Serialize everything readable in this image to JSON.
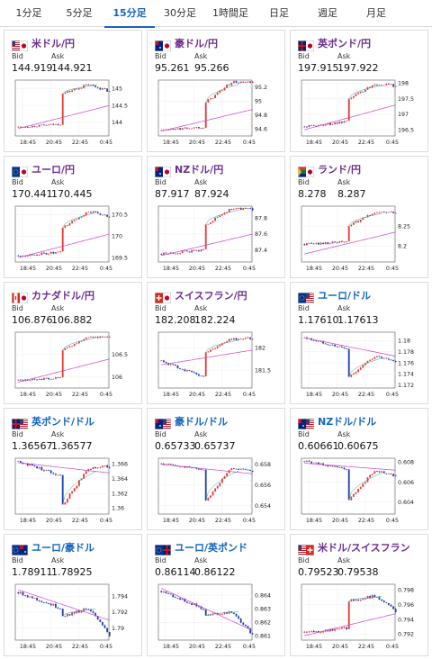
{
  "tabs": [
    {
      "label": "1分足",
      "active": false
    },
    {
      "label": "5分足",
      "active": false
    },
    {
      "label": "15分足",
      "active": true
    },
    {
      "label": "30分足",
      "active": false
    },
    {
      "label": "1時間足",
      "active": false
    },
    {
      "label": "日足",
      "active": false
    },
    {
      "label": "週足",
      "active": false
    },
    {
      "label": "月足",
      "active": false
    }
  ],
  "labels": {
    "bid": "Bid",
    "ask": "Ask"
  },
  "colors": {
    "candle_up": "#e53935",
    "candle_down": "#1e40af",
    "moving_average": "#cc44cc",
    "trend_line": "#26a69a",
    "pair_rising": "#6b2d8f",
    "pair_falling": "#1565c0",
    "active_tab": "#1565c0"
  },
  "quotes": [
    {
      "pair": "米ドル/円",
      "flag": "us-jp-flag-icon",
      "bid": "144.919",
      "ask": "144.921",
      "chart_data": {
        "type": "candlestick",
        "x_ticks": [
          "18:45",
          "20:45",
          "22:45",
          "0:45"
        ],
        "y_ticks": [
          "145",
          "144.5",
          "144"
        ],
        "ylim": [
          143.6,
          145.25
        ],
        "before": {
          "start": 143.86,
          "end": 143.95,
          "amp": 0.03
        },
        "jump": [
          143.95,
          144.85
        ],
        "after": {
          "start": 144.85,
          "peak": 145.12,
          "end": 144.92,
          "amp": 0.04
        },
        "ma": {
          "start": 143.82,
          "end": 144.5
        }
      }
    },
    {
      "pair": "豪ドル/円",
      "flag": "au-jp-flag-icon",
      "bid": "95.261",
      "ask": "95.266",
      "chart_data": {
        "type": "candlestick",
        "x_ticks": [
          "18:45",
          "20:45",
          "22:45",
          "0:45"
        ],
        "y_ticks": [
          "95.2",
          "95",
          "94.8",
          "94.6"
        ],
        "ylim": [
          94.5,
          95.3
        ],
        "before": {
          "start": 94.58,
          "end": 94.63,
          "amp": 0.015
        },
        "jump": [
          94.63,
          94.98
        ],
        "after": {
          "start": 94.98,
          "peak": 95.27,
          "end": 95.26,
          "amp": 0.02
        },
        "ma": {
          "start": 94.57,
          "end": 94.88
        }
      }
    },
    {
      "pair": "英ポンド/円",
      "flag": "gb-jp-flag-icon",
      "bid": "197.915",
      "ask": "197.922",
      "chart_data": {
        "type": "candlestick",
        "x_ticks": [
          "18:45",
          "20:45",
          "22:45",
          "0:45"
        ],
        "y_ticks": [
          "198",
          "197.5",
          "197",
          "196.5"
        ],
        "ylim": [
          196.3,
          198.1
        ],
        "before": {
          "start": 196.6,
          "end": 196.75,
          "amp": 0.04
        },
        "jump": [
          196.75,
          197.5
        ],
        "after": {
          "start": 197.5,
          "peak": 197.98,
          "end": 197.92,
          "amp": 0.04
        },
        "ma": {
          "start": 196.5,
          "end": 197.3
        }
      }
    },
    {
      "pair": "ユーロ/円",
      "flag": "eu-jp-flag-icon",
      "bid": "170.441",
      "ask": "170.445",
      "chart_data": {
        "type": "candlestick",
        "x_ticks": [
          "18:45",
          "20:45",
          "22:45",
          "0:45"
        ],
        "y_ticks": [
          "170.5",
          "170",
          "169.5"
        ],
        "ylim": [
          169.4,
          170.7
        ],
        "before": {
          "start": 169.55,
          "end": 169.62,
          "amp": 0.03
        },
        "jump": [
          169.62,
          170.2
        ],
        "after": {
          "start": 170.2,
          "peak": 170.58,
          "end": 170.44,
          "amp": 0.03
        },
        "ma": {
          "start": 169.5,
          "end": 170.05
        }
      }
    },
    {
      "pair": "NZドル/円",
      "flag": "nz-jp-flag-icon",
      "bid": "87.917",
      "ask": "87.924",
      "chart_data": {
        "type": "candlestick",
        "x_ticks": [
          "18:45",
          "20:45",
          "22:45",
          "0:45"
        ],
        "y_ticks": [
          "87.8",
          "87.6",
          "87.4"
        ],
        "ylim": [
          87.25,
          87.95
        ],
        "before": {
          "start": 87.35,
          "end": 87.4,
          "amp": 0.015
        },
        "jump": [
          87.4,
          87.72
        ],
        "after": {
          "start": 87.72,
          "peak": 87.92,
          "end": 87.91,
          "amp": 0.015
        },
        "ma": {
          "start": 87.33,
          "end": 87.6
        }
      }
    },
    {
      "pair": "ランド/円",
      "flag": "za-jp-flag-icon",
      "bid": "8.278",
      "ask": "8.287",
      "chart_data": {
        "type": "candlestick",
        "x_ticks": [
          "18:45",
          "20:45",
          "22:45",
          "0:45"
        ],
        "y_ticks": [
          "8.25",
          "8.2"
        ],
        "ylim": [
          8.16,
          8.3
        ],
        "before": {
          "start": 8.205,
          "end": 8.21,
          "amp": 0.003
        },
        "jump": [
          8.21,
          8.25
        ],
        "after": {
          "start": 8.25,
          "peak": 8.285,
          "end": 8.283,
          "amp": 0.003
        },
        "ma": {
          "start": 8.18,
          "end": 8.235
        }
      }
    },
    {
      "pair": "カナダドル/円",
      "flag": "ca-jp-flag-icon",
      "bid": "106.876",
      "ask": "106.882",
      "chart_data": {
        "type": "candlestick",
        "x_ticks": [
          "18:45",
          "20:45",
          "22:45",
          "0:45"
        ],
        "y_ticks": [
          "106.5",
          "106"
        ],
        "ylim": [
          105.75,
          107.0
        ],
        "before": {
          "start": 105.92,
          "end": 105.98,
          "amp": 0.02
        },
        "jump": [
          105.98,
          106.6
        ],
        "after": {
          "start": 106.6,
          "peak": 106.9,
          "end": 106.88,
          "amp": 0.02
        },
        "ma": {
          "start": 105.88,
          "end": 106.4
        }
      }
    },
    {
      "pair": "スイスフラン/円",
      "flag": "ch-jp-flag-icon",
      "bid": "182.208",
      "ask": "182.224",
      "chart_data": {
        "type": "candlestick",
        "x_ticks": [
          "18:45",
          "20:45",
          "22:45",
          "0:45"
        ],
        "y_ticks": [
          "182",
          "181.5"
        ],
        "ylim": [
          181.1,
          182.35
        ],
        "before": {
          "start": 181.7,
          "end": 181.35,
          "amp": 0.03
        },
        "jump": [
          181.35,
          181.9
        ],
        "after": {
          "start": 181.9,
          "peak": 182.2,
          "end": 182.21,
          "amp": 0.03
        },
        "ma": {
          "start": 181.62,
          "end": 181.95
        }
      }
    },
    {
      "pair": "ユーロ/ドル",
      "flag": "eu-us-flag-icon",
      "bid": "1.17610",
      "ask": "1.17613",
      "chart_data": {
        "type": "candlestick",
        "x_ticks": [
          "18:45",
          "20:45",
          "22:45",
          "0:45"
        ],
        "y_ticks": [
          "1.18",
          "1.178",
          "1.176",
          "1.174",
          "1.172"
        ],
        "ylim": [
          1.1715,
          1.1815
        ],
        "before": {
          "start": 1.1805,
          "end": 1.1785,
          "amp": 0.0002
        },
        "jump": [
          1.1785,
          1.1735
        ],
        "after": {
          "start": 1.1735,
          "peak": 1.1772,
          "end": 1.1761,
          "amp": 0.0002
        },
        "ma": {
          "start": 1.1805,
          "end": 1.1772
        }
      }
    },
    {
      "pair": "英ポンド/ドル",
      "flag": "gb-us-flag-icon",
      "bid": "1.36567",
      "ask": "1.36577",
      "chart_data": {
        "type": "candlestick",
        "x_ticks": [
          "18:45",
          "20:45",
          "22:45",
          "0:45"
        ],
        "y_ticks": [
          "1.366",
          "1.364",
          "1.362",
          "1.36"
        ],
        "ylim": [
          1.3592,
          1.3668
        ],
        "before": {
          "start": 1.3664,
          "end": 1.3645,
          "amp": 0.0002
        },
        "jump": [
          1.3645,
          1.3605
        ],
        "after": {
          "start": 1.3605,
          "peak": 1.3655,
          "end": 1.3657,
          "amp": 0.0002
        },
        "ma": {
          "start": 1.3662,
          "end": 1.3648
        }
      }
    },
    {
      "pair": "豪ドル/ドル",
      "flag": "au-us-flag-icon",
      "bid": "0.65733",
      "ask": "0.65737",
      "chart_data": {
        "type": "candlestick",
        "x_ticks": [
          "18:45",
          "20:45",
          "22:45",
          "0:45"
        ],
        "y_ticks": [
          "0.658",
          "0.656",
          "0.654"
        ],
        "ylim": [
          0.6532,
          0.6586
        ],
        "before": {
          "start": 0.6581,
          "end": 0.6575,
          "amp": 0.0001
        },
        "jump": [
          0.6575,
          0.6545
        ],
        "after": {
          "start": 0.6545,
          "peak": 0.6577,
          "end": 0.6573,
          "amp": 0.0001
        },
        "ma": {
          "start": 0.658,
          "end": 0.6571
        }
      }
    },
    {
      "pair": "NZドル/ドル",
      "flag": "nz-us-flag-icon",
      "bid": "0.60661",
      "ask": "0.60675",
      "chart_data": {
        "type": "candlestick",
        "x_ticks": [
          "18:45",
          "20:45",
          "22:45",
          "0:45"
        ],
        "y_ticks": [
          "0.608",
          "0.606",
          "0.604"
        ],
        "ylim": [
          0.6028,
          0.6084
        ],
        "before": {
          "start": 0.6081,
          "end": 0.6073,
          "amp": 0.0001
        },
        "jump": [
          0.6073,
          0.6042
        ],
        "after": {
          "start": 0.6042,
          "peak": 0.6072,
          "end": 0.6066,
          "amp": 0.0001
        },
        "ma": {
          "start": 0.6079,
          "end": 0.6072
        }
      }
    },
    {
      "pair": "ユーロ/豪ドル",
      "flag": "eu-au-flag-icon",
      "bid": "1.78911",
      "ask": "1.78925",
      "chart_data": {
        "type": "candlestick",
        "x_ticks": [
          "18:45",
          "20:45",
          "22:45",
          "0:45"
        ],
        "y_ticks": [
          "1.794",
          "1.792",
          "1.79"
        ],
        "ylim": [
          1.7885,
          1.7955
        ],
        "before": {
          "start": 1.7945,
          "end": 1.7925,
          "amp": 0.0002
        },
        "jump": [
          1.7925,
          1.7915
        ],
        "after": {
          "start": 1.7915,
          "peak": 1.7925,
          "end": 1.7891,
          "amp": 0.0002
        },
        "ma": {
          "start": 1.7948,
          "end": 1.791
        }
      }
    },
    {
      "pair": "ユーロ/英ポンド",
      "flag": "eu-gb-flag-icon",
      "bid": "0.86114",
      "ask": "0.86122",
      "chart_data": {
        "type": "candlestick",
        "x_ticks": [
          "18:45",
          "20:45",
          "22:45",
          "0:45"
        ],
        "y_ticks": [
          "0.864",
          "0.863",
          "0.862",
          "0.861"
        ],
        "ylim": [
          0.8607,
          0.8648
        ],
        "before": {
          "start": 0.8643,
          "end": 0.863,
          "amp": 0.0001
        },
        "jump": [
          0.863,
          0.8625
        ],
        "after": {
          "start": 0.8625,
          "peak": 0.8628,
          "end": 0.8611,
          "amp": 0.0001
        },
        "ma": {
          "start": 0.8645,
          "end": 0.8614
        }
      }
    },
    {
      "pair": "米ドル/スイスフラン",
      "flag": "us-ch-flag-icon",
      "bid": "0.79523",
      "ask": "0.79538",
      "chart_data": {
        "type": "candlestick",
        "x_ticks": [
          "18:45",
          "20:45",
          "22:45",
          "0:45"
        ],
        "y_ticks": [
          "0.798",
          "0.796",
          "0.794",
          "0.792"
        ],
        "ylim": [
          0.7912,
          0.7988
        ],
        "before": {
          "start": 0.7922,
          "end": 0.7928,
          "amp": 0.0002
        },
        "jump": [
          0.7928,
          0.7965
        ],
        "after": {
          "start": 0.7965,
          "peak": 0.7972,
          "end": 0.7952,
          "amp": 0.0002
        },
        "ma": {
          "start": 0.7918,
          "end": 0.7948
        }
      }
    }
  ]
}
